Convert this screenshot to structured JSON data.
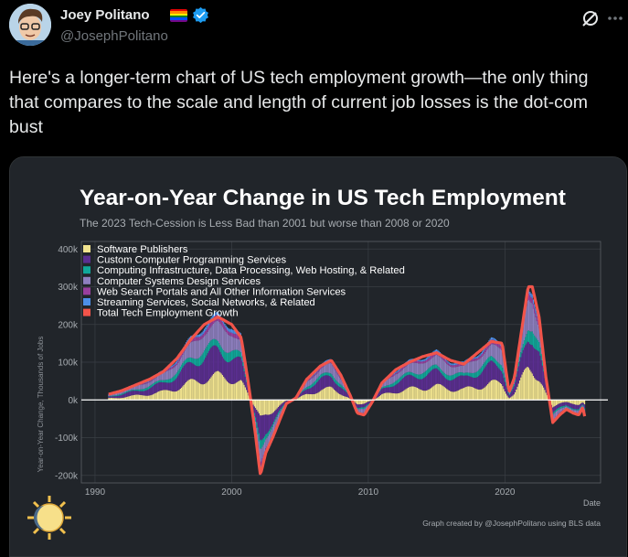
{
  "author": {
    "name": "Joey Politano",
    "handle": "@JosephPolitano",
    "verified": true,
    "badge_icon": "rainbow-flag-icon"
  },
  "tweet": {
    "text": "Here's a longer-term chart of US tech employment growth—the only thing that compares to the scale and length of current job losses is the dot-com bust"
  },
  "colors": {
    "total_line": "#f2544a",
    "software_publishers": "#f2e48f",
    "custom_programming": "#5b2e91",
    "computing_infrastructure": "#10a89a",
    "systems_design": "#8e7fbf",
    "web_search": "#9a3f9e",
    "streaming": "#4d8fe8",
    "background": "#21252a"
  },
  "chart_data": {
    "type": "area",
    "title": "Year-on-Year Change in US Tech Employment",
    "subtitle": "The 2023 Tech-Cession is Less Bad than 2001 but worse than 2008 or 2020",
    "xlabel": "Date",
    "ylabel": "Year-on-Year Change, Thousands of Jobs",
    "caption": "Graph created by @JosephPolitano using BLS data",
    "x_ticks": [
      "1990",
      "2000",
      "2010",
      "2020"
    ],
    "y_ticks": [
      "400k",
      "300k",
      "200k",
      "100k",
      "0k",
      "-100k",
      "-200k"
    ],
    "xlim": [
      1989,
      2027
    ],
    "ylim": [
      -220,
      420
    ],
    "legend": [
      {
        "label": "Software Publishers",
        "color_key": "software_publishers"
      },
      {
        "label": "Custom Computer Programming Services",
        "color_key": "custom_programming"
      },
      {
        "label": "Computing Infrastructure, Data Processing, Web Hosting, & Related",
        "color_key": "computing_infrastructure"
      },
      {
        "label": "Computer Systems Design Services",
        "color_key": "systems_design"
      },
      {
        "label": "Web Search Portals and All Other Information Services",
        "color_key": "web_search"
      },
      {
        "label": "Streaming Services, Social Networks, & Related",
        "color_key": "streaming"
      },
      {
        "label": "Total Tech Employment Growth",
        "color_key": "total_line"
      }
    ],
    "series_total": {
      "name": "Total Tech Employment Growth",
      "points": [
        [
          1991.0,
          15
        ],
        [
          1992.0,
          25
        ],
        [
          1993.0,
          40
        ],
        [
          1994.0,
          55
        ],
        [
          1995.0,
          75
        ],
        [
          1996.0,
          110
        ],
        [
          1997.0,
          160
        ],
        [
          1998.0,
          200
        ],
        [
          1999.0,
          220
        ],
        [
          2000.0,
          200
        ],
        [
          2000.7,
          165
        ],
        [
          2001.2,
          50
        ],
        [
          2001.7,
          -80
        ],
        [
          2002.1,
          -200
        ],
        [
          2002.5,
          -140
        ],
        [
          2003.0,
          -100
        ],
        [
          2003.5,
          -55
        ],
        [
          2004.0,
          -10
        ],
        [
          2004.7,
          5
        ],
        [
          2005.5,
          55
        ],
        [
          2006.5,
          90
        ],
        [
          2007.3,
          105
        ],
        [
          2008.0,
          65
        ],
        [
          2008.7,
          10
        ],
        [
          2009.2,
          -35
        ],
        [
          2009.7,
          -40
        ],
        [
          2010.3,
          -5
        ],
        [
          2011.0,
          45
        ],
        [
          2012.0,
          80
        ],
        [
          2013.0,
          100
        ],
        [
          2014.0,
          115
        ],
        [
          2015.0,
          125
        ],
        [
          2016.0,
          105
        ],
        [
          2017.0,
          95
        ],
        [
          2018.0,
          125
        ],
        [
          2019.0,
          155
        ],
        [
          2019.8,
          150
        ],
        [
          2020.3,
          20
        ],
        [
          2020.7,
          60
        ],
        [
          2021.2,
          180
        ],
        [
          2021.7,
          300
        ],
        [
          2022.0,
          300
        ],
        [
          2022.5,
          220
        ],
        [
          2023.0,
          60
        ],
        [
          2023.5,
          -60
        ],
        [
          2024.0,
          -40
        ],
        [
          2024.5,
          -25
        ],
        [
          2025.0,
          -35
        ],
        [
          2025.4,
          -40
        ],
        [
          2025.7,
          -20
        ],
        [
          2025.9,
          -55
        ]
      ]
    },
    "component_shares": {
      "software_publishers": 0.28,
      "custom_programming": 0.3,
      "computing_infrastructure": 0.1,
      "systems_design": 0.22,
      "web_search": 0.06,
      "streaming": 0.04
    }
  }
}
